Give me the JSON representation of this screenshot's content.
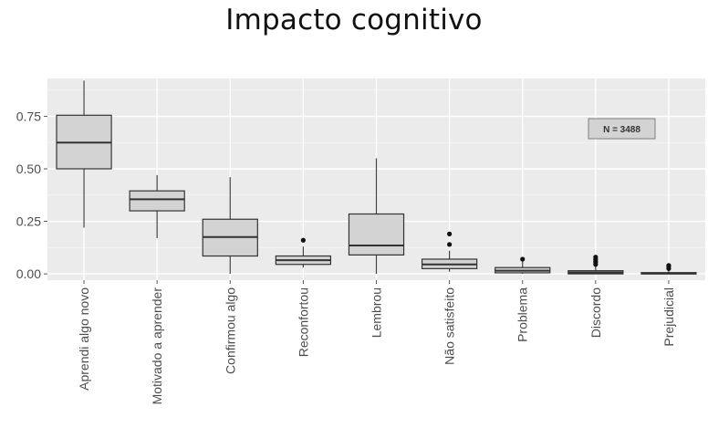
{
  "chart_data": {
    "type": "box",
    "title": "Impacto cognitivo",
    "xlabel": "",
    "ylabel": "",
    "ylim": [
      -0.03,
      0.93
    ],
    "yticks": [
      0.0,
      0.25,
      0.5,
      0.75
    ],
    "ytick_labels": [
      "0.00",
      "0.25",
      "0.50",
      "0.75"
    ],
    "grid": true,
    "annotation": "N = 3488",
    "annotation_position": "top-right",
    "box_fill": "#d3d3d3",
    "panel_bg": "#ebebeb",
    "categories": [
      {
        "label": "Aprendi algo novo",
        "min": 0.22,
        "q1": 0.5,
        "median": 0.625,
        "q3": 0.755,
        "max": 0.92,
        "outliers": []
      },
      {
        "label": "Motivado a aprender",
        "min": 0.17,
        "q1": 0.3,
        "median": 0.355,
        "q3": 0.395,
        "max": 0.47,
        "outliers": []
      },
      {
        "label": "Confirmou algo",
        "min": 0.0,
        "q1": 0.085,
        "median": 0.175,
        "q3": 0.26,
        "max": 0.46,
        "outliers": []
      },
      {
        "label": "Reconfortou",
        "min": 0.03,
        "q1": 0.045,
        "median": 0.065,
        "q3": 0.085,
        "max": 0.13,
        "outliers": [
          0.16
        ]
      },
      {
        "label": "Lembrou",
        "min": 0.0,
        "q1": 0.09,
        "median": 0.135,
        "q3": 0.285,
        "max": 0.55,
        "outliers": []
      },
      {
        "label": "Não satisfeito",
        "min": 0.01,
        "q1": 0.025,
        "median": 0.045,
        "q3": 0.07,
        "max": 0.11,
        "outliers": [
          0.14,
          0.19
        ]
      },
      {
        "label": "Problema",
        "min": 0.0,
        "q1": 0.005,
        "median": 0.015,
        "q3": 0.03,
        "max": 0.06,
        "outliers": [
          0.07
        ]
      },
      {
        "label": "Discordo",
        "min": 0.0,
        "q1": 0.0,
        "median": 0.007,
        "q3": 0.015,
        "max": 0.035,
        "outliers": [
          0.045,
          0.055,
          0.06,
          0.07,
          0.08
        ]
      },
      {
        "label": "Prejudicial",
        "min": 0.0,
        "q1": 0.0,
        "median": 0.002,
        "q3": 0.006,
        "max": 0.015,
        "outliers": [
          0.025,
          0.035,
          0.04
        ]
      }
    ]
  }
}
